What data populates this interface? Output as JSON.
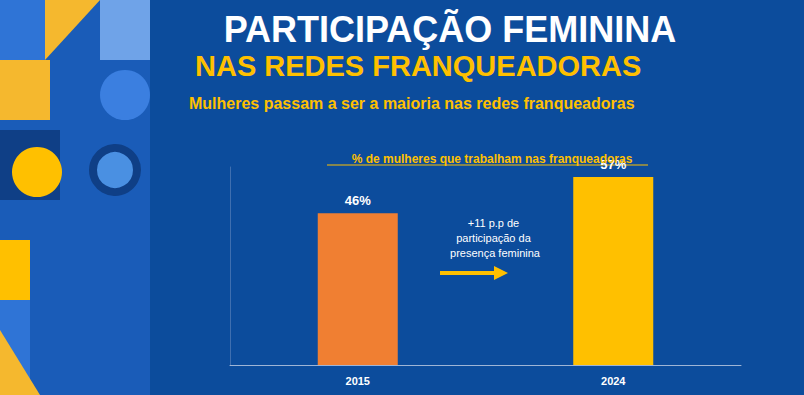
{
  "chart_data": {
    "type": "bar",
    "title": "PARTICIPAÇÃO FEMININA",
    "subtitle": "NAS REDES FRANQUEADORAS",
    "annotations": [
      "Mulheres passam a ser a maioria nas redes franqueadoras",
      "% de mulheres que trabalham nas franqueadoras",
      "+11 p.p de participação da presença feminina"
    ],
    "categories": [
      "2015",
      "2024"
    ],
    "values": [
      46,
      57
    ],
    "value_labels": [
      "46%",
      "57%"
    ],
    "colors": [
      "#f07f32",
      "#ffc000"
    ],
    "ylim": [
      0,
      60
    ],
    "yticks": [],
    "data_labels": true,
    "tick_labels": "x",
    "grid": false
  }
}
